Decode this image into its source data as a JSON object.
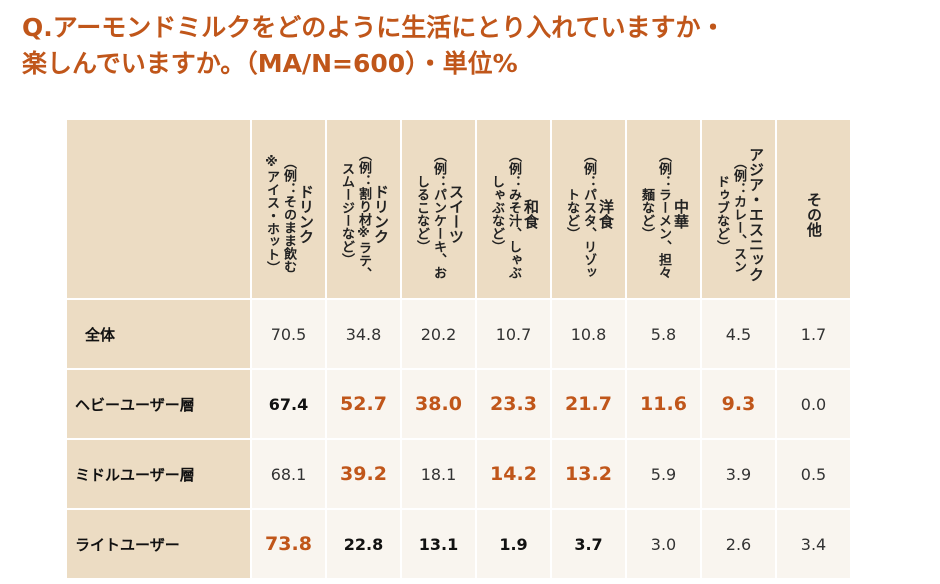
{
  "title": [
    "Q.アーモンドミルクをどのように生活にとり入れていますか・",
    "楽しんでいますか。（MA/N=600）・単位%"
  ],
  "table": {
    "columns": [
      [
        "ドリンク",
        "（例：そのまま飲む",
        "※アイス・ホット）"
      ],
      [
        "ドリンク",
        "（例：割り材※ラテ、",
        "スムージーなど）"
      ],
      [
        "スイーツ",
        "（例：パンケーキ、お",
        "しるこなど）"
      ],
      [
        "和食",
        "（例：みそ汁、しゃぶ",
        "しゃぶなど）"
      ],
      [
        "洋食",
        "（例：パスタ、リゾッ",
        "トなど）"
      ],
      [
        "中華",
        "（例：ラーメン、担々",
        "麺など）"
      ],
      [
        "アジア・エスニック",
        "（例：カレー、スン",
        "ドゥブなど）"
      ],
      [
        "その他"
      ]
    ],
    "rows": [
      {
        "label": "全体",
        "values": [
          "70.5",
          "34.8",
          "20.2",
          "10.7",
          "10.8",
          "5.8",
          "4.5",
          "1.7"
        ]
      },
      {
        "label": "ヘビーユーザー層",
        "values": [
          "67.4",
          "52.7",
          "38.0",
          "23.3",
          "21.7",
          "11.6",
          "9.3",
          "0.0"
        ]
      },
      {
        "label": "ミドルユーザー層",
        "values": [
          "68.1",
          "39.2",
          "18.1",
          "14.2",
          "13.2",
          "5.9",
          "3.9",
          "0.5"
        ]
      },
      {
        "label": "ライトユーザー",
        "values": [
          "73.8",
          "22.8",
          "13.1",
          "1.9",
          "3.7",
          "3.0",
          "2.6",
          "3.4"
        ]
      }
    ]
  }
}
